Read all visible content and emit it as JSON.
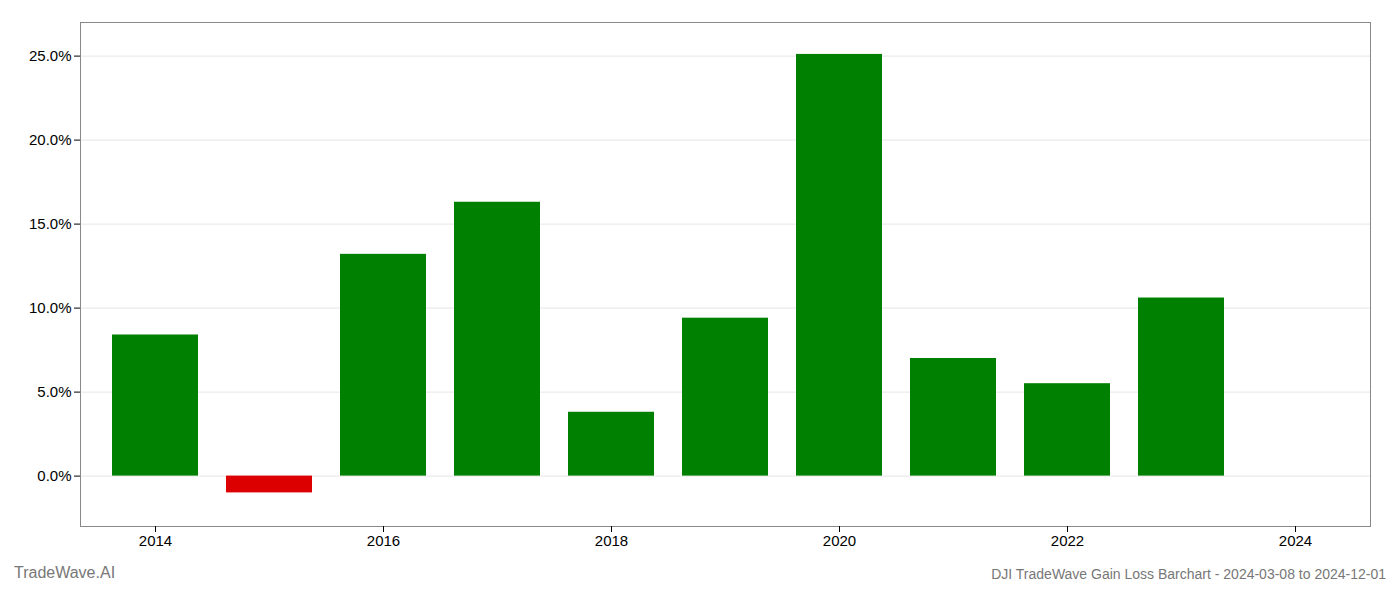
{
  "chart_data": {
    "type": "bar",
    "title": "DJI TradeWave Gain Loss Barchart - 2024-03-08 to 2024-12-01",
    "annotations": [
      "TradeWave.AI"
    ],
    "x": [
      2014,
      2015,
      2016,
      2017,
      2018,
      2019,
      2020,
      2021,
      2022,
      2023,
      2024
    ],
    "values": [
      0.084,
      -0.01,
      0.132,
      0.163,
      0.038,
      0.094,
      0.251,
      0.07,
      0.055,
      0.106,
      0.0
    ],
    "colors": [
      "#008000",
      "#dd0000",
      "#008000",
      "#008000",
      "#008000",
      "#008000",
      "#008000",
      "#008000",
      "#008000",
      "#008000",
      "#008000"
    ],
    "ylim": [
      -0.03,
      0.27
    ],
    "yticks": [
      {
        "value": 0.0,
        "label": "0.0%"
      },
      {
        "value": 0.05,
        "label": "5.0%"
      },
      {
        "value": 0.1,
        "label": "10.0%"
      },
      {
        "value": 0.15,
        "label": "15.0%"
      },
      {
        "value": 0.2,
        "label": "20.0%"
      },
      {
        "value": 0.25,
        "label": "25.0%"
      }
    ],
    "xticks": [
      2014,
      2016,
      2018,
      2020,
      2022,
      2024
    ],
    "grid": true
  }
}
